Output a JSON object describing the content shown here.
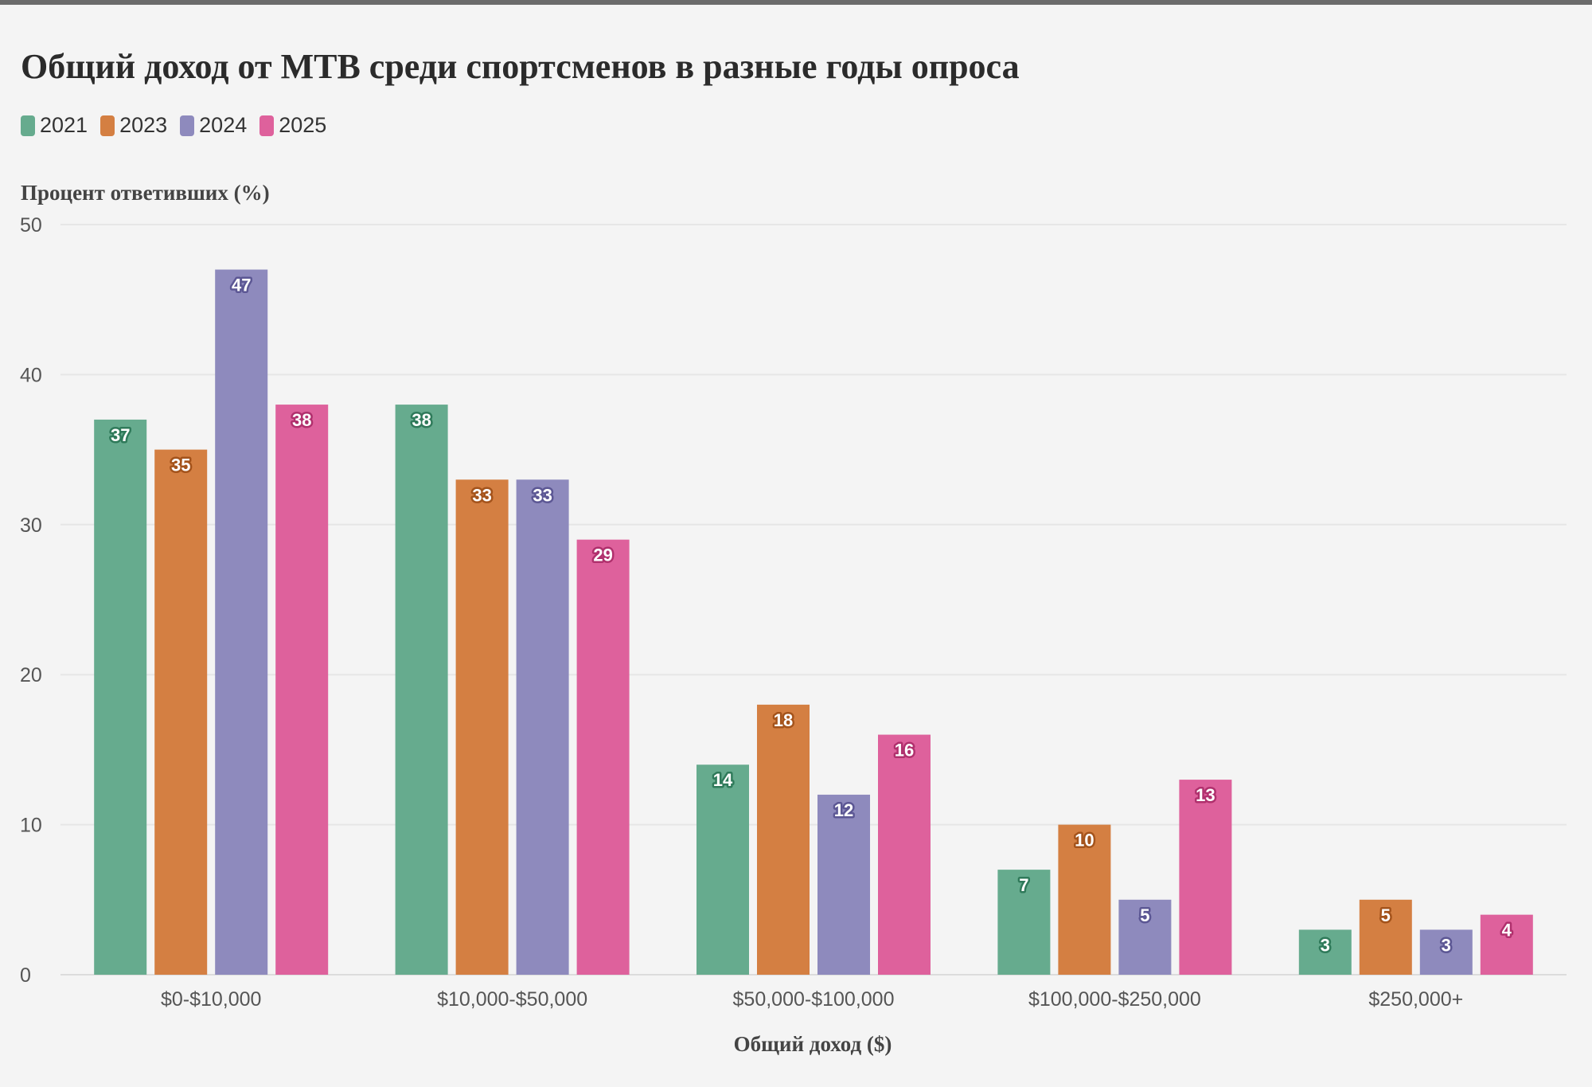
{
  "title": "Общий доход от МТВ среди спортсменов в разные годы опроса",
  "legend": [
    {
      "label": "2021",
      "color": "#66ab8e"
    },
    {
      "label": "2023",
      "color": "#d47f42"
    },
    {
      "label": "2024",
      "color": "#8e8abd"
    },
    {
      "label": "2025",
      "color": "#de619c"
    }
  ],
  "chart_data": {
    "type": "bar",
    "title": "Общий доход от МТВ среди спортсменов в разные годы опроса",
    "xlabel": "Общий доход ($)",
    "ylabel": "Процент ответивших (%)",
    "ylim": [
      0,
      50
    ],
    "yticks": [
      0,
      10,
      20,
      30,
      40,
      50
    ],
    "grid": true,
    "legend_position": "top-left",
    "categories": [
      "$0-$10,000",
      "$10,000-$50,000",
      "$50,000-$100,000",
      "$100,000-$250,000",
      "$250,000+"
    ],
    "series": [
      {
        "name": "2021",
        "color": "#66ab8e",
        "label_stroke": "#2f7a5a",
        "values": [
          37,
          38,
          14,
          7,
          3
        ]
      },
      {
        "name": "2023",
        "color": "#d47f42",
        "label_stroke": "#a4531b",
        "values": [
          35,
          33,
          18,
          10,
          5
        ]
      },
      {
        "name": "2024",
        "color": "#8e8abd",
        "label_stroke": "#5c5794",
        "values": [
          47,
          33,
          12,
          5,
          3
        ]
      },
      {
        "name": "2025",
        "color": "#de619c",
        "label_stroke": "#b0306d",
        "values": [
          38,
          29,
          16,
          13,
          4
        ]
      }
    ]
  }
}
